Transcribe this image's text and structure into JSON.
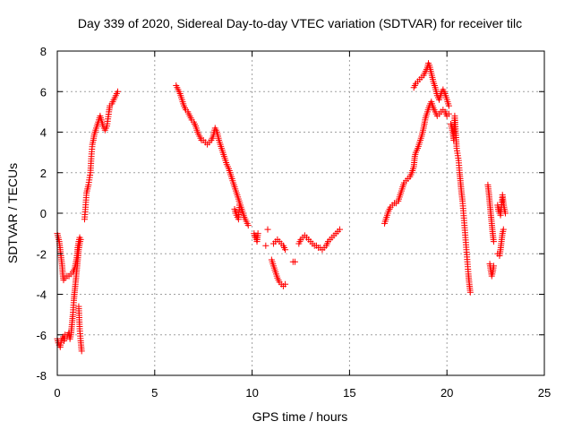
{
  "chart_data": {
    "type": "scatter",
    "title": "Day 339 of 2020, Sidereal Day-to-day VTEC variation (SDTVAR) for receiver tilc",
    "xlabel": "GPS time / hours",
    "ylabel": "SDTVAR / TECUs",
    "xlim": [
      0,
      25
    ],
    "ylim": [
      -8,
      8
    ],
    "xticks": [
      0,
      5,
      10,
      15,
      20,
      25
    ],
    "yticks": [
      -8,
      -6,
      -4,
      -2,
      0,
      2,
      4,
      6,
      8
    ],
    "grid": true,
    "marker": "+",
    "color": "#ff0000",
    "series": [
      {
        "name": "SDTVAR",
        "segments": [
          [
            [
              0.0,
              -1.0
            ],
            [
              0.1,
              -1.4
            ],
            [
              0.15,
              -1.8
            ],
            [
              0.2,
              -2.2
            ],
            [
              0.25,
              -2.6
            ],
            [
              0.28,
              -3.0
            ],
            [
              0.32,
              -3.3
            ],
            [
              0.4,
              -3.2
            ],
            [
              0.5,
              -3.1
            ],
            [
              0.6,
              -3.1
            ],
            [
              0.7,
              -3.0
            ],
            [
              0.8,
              -2.9
            ],
            [
              0.9,
              -2.7
            ],
            [
              1.0,
              -2.2
            ],
            [
              1.05,
              -1.7
            ],
            [
              1.1,
              -1.4
            ],
            [
              1.15,
              -1.2
            ]
          ],
          [
            [
              0.0,
              -6.2
            ],
            [
              0.05,
              -6.4
            ],
            [
              0.1,
              -6.5
            ],
            [
              0.15,
              -6.6
            ],
            [
              0.2,
              -6.3
            ],
            [
              0.25,
              -6.2
            ],
            [
              0.3,
              -6.1
            ],
            [
              0.35,
              -6.3
            ],
            [
              0.4,
              -6.0
            ],
            [
              0.5,
              -6.1
            ],
            [
              0.6,
              -5.9
            ],
            [
              0.65,
              -6.2
            ],
            [
              0.7,
              -6.0
            ],
            [
              0.75,
              -5.5
            ],
            [
              0.8,
              -5.0
            ],
            [
              0.85,
              -4.3
            ],
            [
              0.9,
              -3.8
            ],
            [
              0.95,
              -3.3
            ],
            [
              1.0,
              -2.8
            ],
            [
              1.05,
              -2.3
            ],
            [
              1.1,
              -1.8
            ],
            [
              1.15,
              -1.5
            ],
            [
              1.2,
              -1.3
            ]
          ],
          [
            [
              1.1,
              -4.6
            ],
            [
              1.15,
              -5.7
            ],
            [
              1.2,
              -6.3
            ],
            [
              1.25,
              -6.8
            ]
          ],
          [
            [
              1.4,
              -0.3
            ],
            [
              1.45,
              0.3
            ],
            [
              1.5,
              1.0
            ],
            [
              1.55,
              1.2
            ],
            [
              1.6,
              1.4
            ],
            [
              1.7,
              2.0
            ],
            [
              1.75,
              2.8
            ],
            [
              1.8,
              3.4
            ],
            [
              1.85,
              3.6
            ],
            [
              1.9,
              3.9
            ],
            [
              2.0,
              4.2
            ],
            [
              2.1,
              4.5
            ],
            [
              2.2,
              4.8
            ],
            [
              2.35,
              4.3
            ],
            [
              2.45,
              4.1
            ],
            [
              2.55,
              4.3
            ],
            [
              2.65,
              5.0
            ],
            [
              2.7,
              5.3
            ],
            [
              2.8,
              5.4
            ],
            [
              2.9,
              5.6
            ],
            [
              3.1,
              6.0
            ]
          ],
          [
            [
              6.1,
              6.3
            ],
            [
              6.2,
              6.1
            ],
            [
              6.3,
              5.9
            ],
            [
              6.4,
              5.6
            ],
            [
              6.5,
              5.3
            ],
            [
              6.6,
              5.1
            ],
            [
              6.7,
              5.0
            ],
            [
              6.8,
              4.8
            ],
            [
              6.9,
              4.6
            ],
            [
              7.0,
              4.5
            ],
            [
              7.1,
              4.3
            ],
            [
              7.2,
              4.0
            ],
            [
              7.3,
              3.8
            ],
            [
              7.4,
              3.6
            ],
            [
              7.5,
              3.6
            ],
            [
              7.6,
              3.5
            ],
            [
              7.7,
              3.4
            ],
            [
              7.8,
              3.5
            ],
            [
              7.9,
              3.6
            ],
            [
              8.0,
              3.8
            ],
            [
              8.1,
              4.2
            ],
            [
              8.2,
              4.0
            ],
            [
              8.3,
              3.6
            ],
            [
              8.4,
              3.3
            ],
            [
              8.5,
              3.0
            ],
            [
              8.6,
              2.7
            ],
            [
              8.7,
              2.4
            ],
            [
              8.8,
              2.2
            ],
            [
              8.9,
              1.9
            ],
            [
              9.0,
              1.6
            ],
            [
              9.1,
              1.3
            ],
            [
              9.2,
              1.0
            ],
            [
              9.3,
              0.7
            ],
            [
              9.4,
              0.4
            ],
            [
              9.5,
              0.1
            ],
            [
              9.6,
              -0.2
            ],
            [
              9.7,
              -0.4
            ],
            [
              9.8,
              -0.6
            ]
          ],
          [
            [
              9.1,
              0.2
            ],
            [
              9.2,
              -0.1
            ],
            [
              9.3,
              -0.3
            ],
            [
              9.35,
              0.4
            ]
          ],
          [
            [
              10.1,
              -1.0
            ],
            [
              10.15,
              -1.2
            ],
            [
              10.2,
              -1.1
            ],
            [
              10.25,
              -1.4
            ],
            [
              10.3,
              -1.0
            ]
          ],
          [
            [
              10.8,
              -0.8
            ]
          ],
          [
            [
              10.7,
              -1.6
            ]
          ],
          [
            [
              11.0,
              -2.3
            ],
            [
              11.1,
              -2.6
            ],
            [
              11.2,
              -2.9
            ],
            [
              11.3,
              -3.2
            ],
            [
              11.4,
              -3.4
            ],
            [
              11.5,
              -3.5
            ],
            [
              11.6,
              -3.6
            ],
            [
              11.7,
              -3.5
            ]
          ],
          [
            [
              11.1,
              -1.5
            ],
            [
              11.2,
              -1.4
            ],
            [
              11.3,
              -1.3
            ],
            [
              11.4,
              -1.4
            ],
            [
              11.5,
              -1.5
            ],
            [
              11.6,
              -1.6
            ],
            [
              11.7,
              -1.8
            ]
          ],
          [
            [
              12.1,
              -2.4
            ],
            [
              12.2,
              -2.4
            ]
          ],
          [
            [
              12.4,
              -1.5
            ],
            [
              12.5,
              -1.3
            ],
            [
              12.6,
              -1.2
            ],
            [
              12.7,
              -1.1
            ],
            [
              12.8,
              -1.2
            ],
            [
              12.9,
              -1.3
            ],
            [
              13.0,
              -1.4
            ],
            [
              13.1,
              -1.5
            ],
            [
              13.2,
              -1.6
            ],
            [
              13.3,
              -1.6
            ],
            [
              13.4,
              -1.7
            ],
            [
              13.5,
              -1.7
            ],
            [
              13.6,
              -1.8
            ],
            [
              13.7,
              -1.7
            ],
            [
              13.8,
              -1.6
            ],
            [
              13.9,
              -1.4
            ],
            [
              14.0,
              -1.3
            ],
            [
              14.1,
              -1.2
            ],
            [
              14.2,
              -1.1
            ],
            [
              14.3,
              -1.0
            ],
            [
              14.4,
              -0.9
            ],
            [
              14.5,
              -0.8
            ]
          ],
          [
            [
              16.8,
              -0.5
            ],
            [
              16.9,
              -0.2
            ],
            [
              17.0,
              0.1
            ],
            [
              17.1,
              0.3
            ],
            [
              17.2,
              0.4
            ],
            [
              17.3,
              0.5
            ],
            [
              17.4,
              0.5
            ],
            [
              17.5,
              0.6
            ],
            [
              17.6,
              0.9
            ],
            [
              17.7,
              1.2
            ],
            [
              17.8,
              1.5
            ],
            [
              17.9,
              1.6
            ],
            [
              18.0,
              1.7
            ],
            [
              18.1,
              1.8
            ],
            [
              18.2,
              2.0
            ],
            [
              18.3,
              2.3
            ],
            [
              18.35,
              2.8
            ],
            [
              18.4,
              3.0
            ],
            [
              18.5,
              3.2
            ],
            [
              18.6,
              3.5
            ],
            [
              18.7,
              3.8
            ],
            [
              18.8,
              4.2
            ],
            [
              18.9,
              4.7
            ],
            [
              19.0,
              5.0
            ],
            [
              19.1,
              5.3
            ],
            [
              19.2,
              5.5
            ],
            [
              19.3,
              5.2
            ],
            [
              19.4,
              5.0
            ],
            [
              19.5,
              4.8
            ],
            [
              19.6,
              4.9
            ],
            [
              19.7,
              5.0
            ],
            [
              19.8,
              5.1
            ],
            [
              19.9,
              5.0
            ],
            [
              20.0,
              4.8
            ],
            [
              20.1,
              4.9
            ]
          ],
          [
            [
              18.3,
              6.2
            ],
            [
              18.4,
              6.4
            ],
            [
              18.5,
              6.5
            ],
            [
              18.6,
              6.6
            ],
            [
              18.7,
              6.7
            ],
            [
              18.8,
              6.8
            ],
            [
              18.9,
              7.0
            ],
            [
              19.0,
              7.2
            ],
            [
              19.05,
              7.4
            ],
            [
              19.1,
              7.3
            ],
            [
              19.2,
              6.9
            ],
            [
              19.3,
              6.5
            ],
            [
              19.4,
              6.2
            ],
            [
              19.5,
              5.8
            ],
            [
              19.6,
              5.6
            ],
            [
              19.7,
              5.9
            ],
            [
              19.8,
              6.1
            ],
            [
              19.9,
              5.9
            ],
            [
              20.0,
              5.6
            ],
            [
              20.1,
              5.3
            ]
          ],
          [
            [
              20.2,
              4.4
            ],
            [
              20.3,
              4.0
            ],
            [
              20.35,
              3.6
            ],
            [
              20.4,
              4.8
            ],
            [
              20.5,
              3.2
            ],
            [
              20.6,
              2.6
            ],
            [
              20.65,
              2.0
            ],
            [
              20.7,
              1.5
            ],
            [
              20.75,
              1.0
            ],
            [
              20.8,
              0.6
            ],
            [
              20.85,
              0.0
            ],
            [
              20.9,
              -0.6
            ],
            [
              20.95,
              -1.2
            ],
            [
              21.0,
              -1.8
            ],
            [
              21.05,
              -2.4
            ],
            [
              21.1,
              -3.0
            ],
            [
              21.15,
              -3.5
            ],
            [
              21.2,
              -3.9
            ]
          ],
          [
            [
              22.1,
              1.4
            ],
            [
              22.15,
              1.0
            ],
            [
              22.2,
              0.5
            ],
            [
              22.25,
              0.0
            ],
            [
              22.3,
              -0.5
            ],
            [
              22.35,
              -1.0
            ],
            [
              22.4,
              -1.4
            ]
          ],
          [
            [
              22.2,
              -2.5
            ],
            [
              22.25,
              -2.8
            ],
            [
              22.3,
              -3.1
            ],
            [
              22.35,
              -2.9
            ],
            [
              22.4,
              -2.6
            ]
          ],
          [
            [
              22.6,
              0.4
            ],
            [
              22.65,
              0.1
            ],
            [
              22.7,
              0.2
            ],
            [
              22.75,
              -0.1
            ],
            [
              22.8,
              0.3
            ],
            [
              22.85,
              0.9
            ],
            [
              22.9,
              0.5
            ],
            [
              22.95,
              0.2
            ],
            [
              23.0,
              0.0
            ]
          ],
          [
            [
              22.6,
              -2.0
            ],
            [
              22.7,
              -2.1
            ],
            [
              22.75,
              -1.8
            ],
            [
              22.8,
              -1.4
            ],
            [
              22.85,
              -1.0
            ],
            [
              22.9,
              -0.8
            ]
          ]
        ]
      }
    ]
  }
}
